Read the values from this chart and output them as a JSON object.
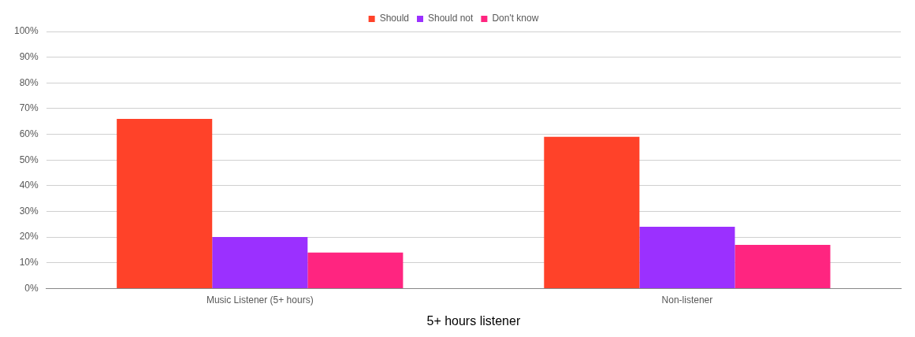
{
  "chart_data": {
    "type": "bar",
    "xlabel": "5+ hours listener",
    "categories": [
      "Music Listener (5+ hours)",
      "Non-listener"
    ],
    "series": [
      {
        "name": "Should",
        "color": "#ff4229",
        "values": [
          66,
          59
        ]
      },
      {
        "name": "Should not",
        "color": "#9b30ff",
        "values": [
          20,
          24
        ]
      },
      {
        "name": "Don't know",
        "color": "#ff2580",
        "values": [
          14,
          17
        ]
      }
    ],
    "ylim": [
      0,
      100
    ],
    "yticks": [
      {
        "value": 0,
        "label": "0%"
      },
      {
        "value": 10,
        "label": "10%"
      },
      {
        "value": 20,
        "label": "20%"
      },
      {
        "value": 30,
        "label": "30%"
      },
      {
        "value": 40,
        "label": "40%"
      },
      {
        "value": 50,
        "label": "50%"
      },
      {
        "value": 60,
        "label": "60%"
      },
      {
        "value": 70,
        "label": "70%"
      },
      {
        "value": 80,
        "label": "80%"
      },
      {
        "value": 90,
        "label": "90%"
      },
      {
        "value": 100,
        "label": "100%"
      }
    ],
    "grid": "y",
    "legend": "top"
  }
}
